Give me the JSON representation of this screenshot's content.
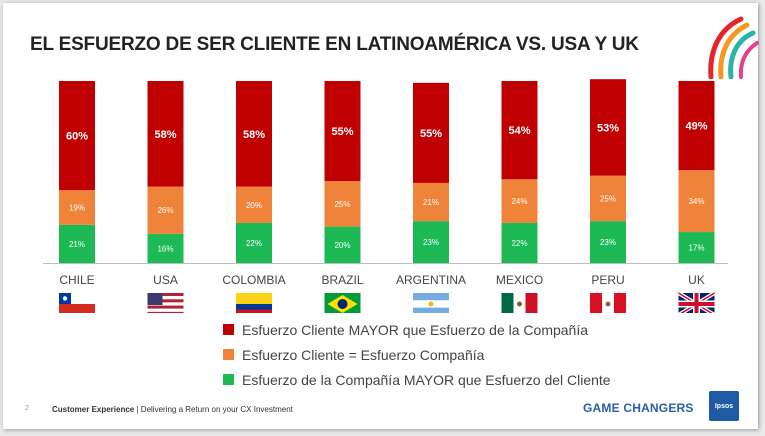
{
  "title": "EL ESFUERZO DE SER CLIENTE EN LATINOAMÉRICA VS. USA Y UK",
  "chart_data": {
    "type": "bar",
    "stacked": true,
    "categories": [
      "CHILE",
      "USA",
      "COLOMBIA",
      "BRAZIL",
      "ARGENTINA",
      "MEXICO",
      "PERU",
      "UK"
    ],
    "series": [
      {
        "name": "Esfuerzo de la Compañía MAYOR que Esfuerzo del Cliente",
        "color": "#1db954",
        "values": [
          21,
          16,
          22,
          20,
          23,
          22,
          23,
          17
        ]
      },
      {
        "name": "Esfuerzo Cliente = Esfuerzo Compañía",
        "color": "#f0833a",
        "values": [
          19,
          26,
          20,
          25,
          21,
          24,
          25,
          34
        ]
      },
      {
        "name": "Esfuerzo Cliente MAYOR que Esfuerzo de la Compañía",
        "color": "#c00000",
        "values": [
          60,
          58,
          58,
          55,
          55,
          54,
          53,
          49
        ]
      }
    ],
    "ylim": [
      0,
      100
    ],
    "legend_position": "bottom-center"
  },
  "legend": [
    {
      "label": "Esfuerzo Cliente MAYOR que Esfuerzo de la Compañía",
      "color": "#c00000"
    },
    {
      "label": "Esfuerzo Cliente = Esfuerzo Compañía",
      "color": "#f0833a"
    },
    {
      "label": "Esfuerzo de la Compañía MAYOR que Esfuerzo del Cliente",
      "color": "#1db954"
    }
  ],
  "flags": [
    "chile-flag-icon",
    "usa-flag-icon",
    "colombia-flag-icon",
    "brazil-flag-icon",
    "argentina-flag-icon",
    "mexico-flag-icon",
    "peru-flag-icon",
    "uk-flag-icon"
  ],
  "footer": {
    "page": "2",
    "section": "Customer Experience",
    "separator": " | ",
    "subtitle": "Delivering a Return on your CX Investment"
  },
  "brand": {
    "game_changers": "GAME CHANGERS",
    "ipsos": "Ipsos"
  }
}
